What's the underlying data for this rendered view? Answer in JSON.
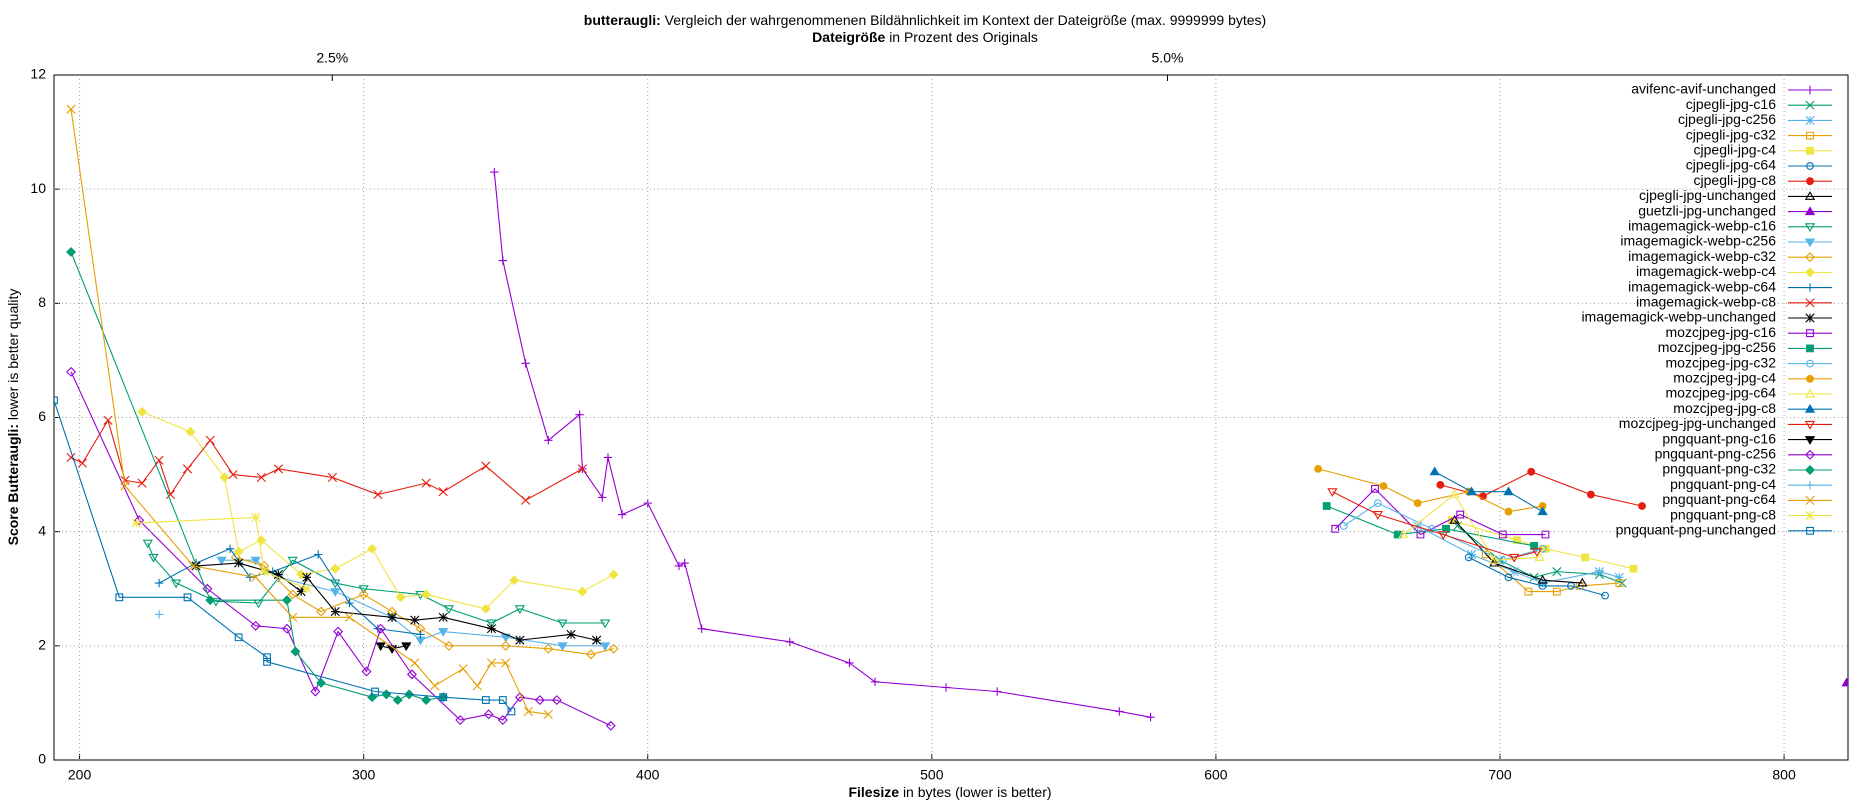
{
  "chart_data": {
    "type": "line",
    "title_prefix": "butteraugli:",
    "title": "Vergleich der wahrgenommenen Bildähnlichkeit im Kontext der Dateigröße (max. 9999999 bytes)",
    "x2_label_prefix": "Dateigröße",
    "x2_label": "in Prozent des Originals",
    "x_label_prefix": "Filesize",
    "x_label": "in bytes (lower is better)",
    "y_label_prefix": "Score Butteraugli:",
    "y_label": "lower is better quality",
    "xlim": [
      191,
      822.5
    ],
    "xticks": [
      200,
      300,
      400,
      500,
      600,
      700,
      800
    ],
    "ylim": [
      0,
      12
    ],
    "yticks": [
      0,
      2,
      4,
      6,
      8,
      10,
      12
    ],
    "x2lim": [
      1.667,
      7.037
    ],
    "x2ticks": [
      {
        "value": 2.5,
        "label": "2.5%"
      },
      {
        "value": 5.0,
        "label": "5.0%"
      }
    ],
    "grid": true,
    "legend": "top-right",
    "series": [
      {
        "name": "avifenc-avif-unchanged",
        "color": "#9400d3",
        "marker": "plus",
        "x": [
          346,
          349,
          357,
          365,
          376,
          377,
          384,
          386,
          391,
          400,
          411,
          413,
          419,
          450,
          471,
          480,
          505,
          523,
          566,
          577
        ],
        "values": [
          10.3,
          8.75,
          6.95,
          5.6,
          6.05,
          5.1,
          4.6,
          5.3,
          4.3,
          4.5,
          3.4,
          3.45,
          2.3,
          2.07,
          1.7,
          1.37,
          1.27,
          1.2,
          0.85,
          0.75
        ]
      },
      {
        "name": "cjpegli-jpg-c16",
        "color": "#009e73",
        "marker": "x",
        "x": [
          685,
          700,
          712,
          720,
          735,
          743
        ],
        "values": [
          4.1,
          3.5,
          3.2,
          3.3,
          3.25,
          3.1
        ]
      },
      {
        "name": "cjpegli-jpg-c256",
        "color": "#56b4e9",
        "marker": "star",
        "x": [
          671,
          690,
          705,
          715,
          735,
          742
        ],
        "values": [
          4.1,
          3.6,
          3.3,
          3.1,
          3.3,
          3.2
        ]
      },
      {
        "name": "cjpegli-jpg-c32",
        "color": "#e69f00",
        "marker": "square",
        "x": [
          695,
          710,
          720,
          728,
          742
        ],
        "values": [
          3.6,
          2.95,
          2.95,
          3.05,
          3.1
        ]
      },
      {
        "name": "cjpegli-jpg-c4",
        "color": "#f0e442",
        "marker": "square-filled",
        "x": [
          683,
          706,
          716,
          730,
          747
        ],
        "values": [
          4.2,
          3.85,
          3.7,
          3.55,
          3.35
        ]
      },
      {
        "name": "cjpegli-jpg-c64",
        "color": "#0072b2",
        "marker": "circle",
        "x": [
          689,
          703,
          715,
          725,
          737
        ],
        "values": [
          3.55,
          3.2,
          3.05,
          3.05,
          2.88
        ]
      },
      {
        "name": "cjpegli-jpg-c8",
        "color": "#e51e10",
        "marker": "circle-filled",
        "x": [
          679,
          694,
          711,
          732,
          750
        ],
        "values": [
          4.82,
          4.62,
          5.05,
          4.65,
          4.45
        ]
      },
      {
        "name": "cjpegli-jpg-unchanged",
        "color": "#000000",
        "marker": "triangle",
        "x": [
          684,
          698,
          715,
          729
        ],
        "values": [
          4.2,
          3.45,
          3.15,
          3.1
        ]
      },
      {
        "name": "guetzli-jpg-unchanged",
        "color": "#9400d3",
        "marker": "triangle-filled",
        "x": [
          822
        ],
        "values": [
          1.35
        ]
      },
      {
        "name": "imagemagick-webp-c16",
        "color": "#009e73",
        "marker": "triangle-down",
        "x": [
          224,
          226,
          234,
          248,
          263,
          275,
          290,
          300,
          320,
          330,
          345,
          355,
          370,
          385
        ],
        "values": [
          3.8,
          3.55,
          3.1,
          2.78,
          2.75,
          3.5,
          3.1,
          3.0,
          2.9,
          2.65,
          2.4,
          2.65,
          2.4,
          2.4
        ]
      },
      {
        "name": "imagemagick-webp-c256",
        "color": "#56b4e9",
        "marker": "triangle-down-filled",
        "x": [
          250,
          262,
          270,
          290,
          310,
          320,
          328,
          350,
          370,
          385
        ],
        "values": [
          3.5,
          3.5,
          3.2,
          2.95,
          2.5,
          2.1,
          2.25,
          2.15,
          2.0,
          2.0
        ]
      },
      {
        "name": "imagemagick-webp-c32",
        "color": "#e69f00",
        "marker": "diamond",
        "x": [
          255,
          265,
          275,
          285,
          300,
          310,
          320,
          330,
          350,
          365,
          380,
          388
        ],
        "values": [
          3.55,
          3.4,
          2.9,
          2.6,
          2.9,
          2.6,
          2.3,
          2.0,
          2.0,
          1.95,
          1.85,
          1.95
        ]
      },
      {
        "name": "imagemagick-webp-c4",
        "color": "#f0e442",
        "marker": "diamond-filled",
        "x": [
          222,
          239,
          251,
          256,
          264,
          278,
          290,
          303,
          313,
          322,
          343,
          353,
          377,
          388
        ],
        "values": [
          6.1,
          5.75,
          4.95,
          3.65,
          3.85,
          3.25,
          3.35,
          3.7,
          2.85,
          2.9,
          2.65,
          3.15,
          2.95,
          3.25
        ]
      },
      {
        "name": "imagemagick-webp-c64",
        "color": "#0072b2",
        "marker": "plus",
        "x": [
          228,
          241,
          253,
          260,
          268,
          284,
          295,
          305,
          320
        ],
        "values": [
          3.1,
          3.45,
          3.7,
          3.2,
          3.3,
          3.6,
          2.75,
          2.3,
          2.2
        ]
      },
      {
        "name": "imagemagick-webp-c8",
        "color": "#e51e10",
        "marker": "x",
        "x": [
          197,
          201,
          210,
          216,
          222,
          228,
          232,
          238,
          246,
          254,
          264,
          270,
          289,
          305,
          322,
          328,
          343,
          357,
          377
        ],
        "values": [
          5.3,
          5.2,
          5.95,
          4.9,
          4.85,
          5.25,
          4.65,
          5.1,
          5.6,
          5.0,
          4.95,
          5.1,
          4.95,
          4.65,
          4.85,
          4.7,
          5.15,
          4.55,
          5.1
        ]
      },
      {
        "name": "imagemagick-webp-unchanged",
        "color": "#000000",
        "marker": "star",
        "x": [
          241,
          256,
          270,
          278,
          280,
          290,
          310,
          318,
          328,
          345,
          355,
          373,
          382
        ],
        "values": [
          3.4,
          3.45,
          3.25,
          2.95,
          3.2,
          2.6,
          2.5,
          2.45,
          2.5,
          2.3,
          2.1,
          2.2,
          2.1
        ]
      },
      {
        "name": "mozcjpeg-jpg-c16",
        "color": "#9400d3",
        "marker": "square",
        "x": [
          642,
          656,
          672,
          686,
          701,
          716
        ],
        "values": [
          4.05,
          4.75,
          3.95,
          4.3,
          3.95,
          3.95
        ]
      },
      {
        "name": "mozcjpeg-jpg-c256",
        "color": "#009e73",
        "marker": "square-filled",
        "x": [
          639,
          664,
          681,
          712
        ],
        "values": [
          4.45,
          3.95,
          4.05,
          3.75
        ]
      },
      {
        "name": "mozcjpeg-jpg-c32",
        "color": "#56b4e9",
        "marker": "circle",
        "x": [
          645,
          657,
          676,
          701,
          715
        ],
        "values": [
          4.1,
          4.5,
          4.05,
          3.5,
          3.7
        ]
      },
      {
        "name": "mozcjpeg-jpg-c4",
        "color": "#e69f00",
        "marker": "circle-filled",
        "x": [
          636,
          659,
          671,
          689,
          703,
          715
        ],
        "values": [
          5.1,
          4.8,
          4.5,
          4.7,
          4.35,
          4.45
        ]
      },
      {
        "name": "mozcjpeg-jpg-c64",
        "color": "#f0e442",
        "marker": "triangle",
        "x": [
          666,
          684,
          698,
          714
        ],
        "values": [
          3.95,
          4.65,
          3.5,
          3.55
        ]
      },
      {
        "name": "mozcjpeg-jpg-c8",
        "color": "#0072b2",
        "marker": "triangle-filled",
        "x": [
          677,
          690,
          703,
          715
        ],
        "values": [
          5.05,
          4.7,
          4.7,
          4.35
        ]
      },
      {
        "name": "mozcjpeg-jpg-unchanged",
        "color": "#e51e10",
        "marker": "triangle-down",
        "x": [
          641,
          657,
          680,
          705,
          713
        ],
        "values": [
          4.7,
          4.3,
          3.95,
          3.55,
          3.65
        ]
      },
      {
        "name": "pngquant-png-c16",
        "color": "#000000",
        "marker": "triangle-down-filled",
        "x": [
          306,
          310,
          315
        ],
        "values": [
          2.0,
          1.95,
          2.0
        ]
      },
      {
        "name": "pngquant-png-c256",
        "color": "#9400d3",
        "marker": "diamond",
        "x": [
          197,
          221,
          245,
          262,
          273,
          283,
          291,
          301,
          306,
          317,
          334,
          344,
          349,
          355,
          362,
          368,
          387
        ],
        "values": [
          6.8,
          4.2,
          3.0,
          2.35,
          2.3,
          1.2,
          2.25,
          1.55,
          2.3,
          1.5,
          0.7,
          0.8,
          0.7,
          1.1,
          1.05,
          1.05,
          0.6
        ]
      },
      {
        "name": "pngquant-png-c32",
        "color": "#009e73",
        "marker": "diamond-filled",
        "x": [
          197,
          246,
          273,
          276,
          285,
          303,
          308,
          312,
          316,
          322,
          328
        ],
        "values": [
          8.9,
          2.8,
          2.8,
          1.9,
          1.35,
          1.1,
          1.15,
          1.05,
          1.15,
          1.05,
          1.1
        ]
      },
      {
        "name": "pngquant-png-c4",
        "color": "#56b4e9",
        "marker": "plus",
        "x": [
          228
        ],
        "values": [
          2.55
        ]
      },
      {
        "name": "pngquant-png-c64",
        "color": "#e69f00",
        "marker": "x",
        "x": [
          197,
          216,
          240,
          262,
          275,
          295,
          318,
          325,
          335,
          340,
          345,
          350,
          358,
          365
        ],
        "values": [
          11.4,
          4.8,
          3.4,
          3.2,
          2.5,
          2.5,
          1.7,
          1.3,
          1.6,
          1.3,
          1.7,
          1.7,
          0.85,
          0.8
        ]
      },
      {
        "name": "pngquant-png-c8",
        "color": "#f0e442",
        "marker": "star",
        "x": [
          220,
          262,
          265,
          280
        ],
        "values": [
          4.15,
          4.25,
          3.3,
          3.0
        ]
      },
      {
        "name": "pngquant-png-unchanged",
        "color": "#0072b2",
        "marker": "square",
        "x": [
          191,
          214,
          238,
          256,
          266,
          266,
          304,
          328,
          343,
          349,
          352
        ],
        "values": [
          6.3,
          2.85,
          2.85,
          2.15,
          1.8,
          1.72,
          1.2,
          1.1,
          1.05,
          1.05,
          0.85
        ]
      }
    ]
  }
}
